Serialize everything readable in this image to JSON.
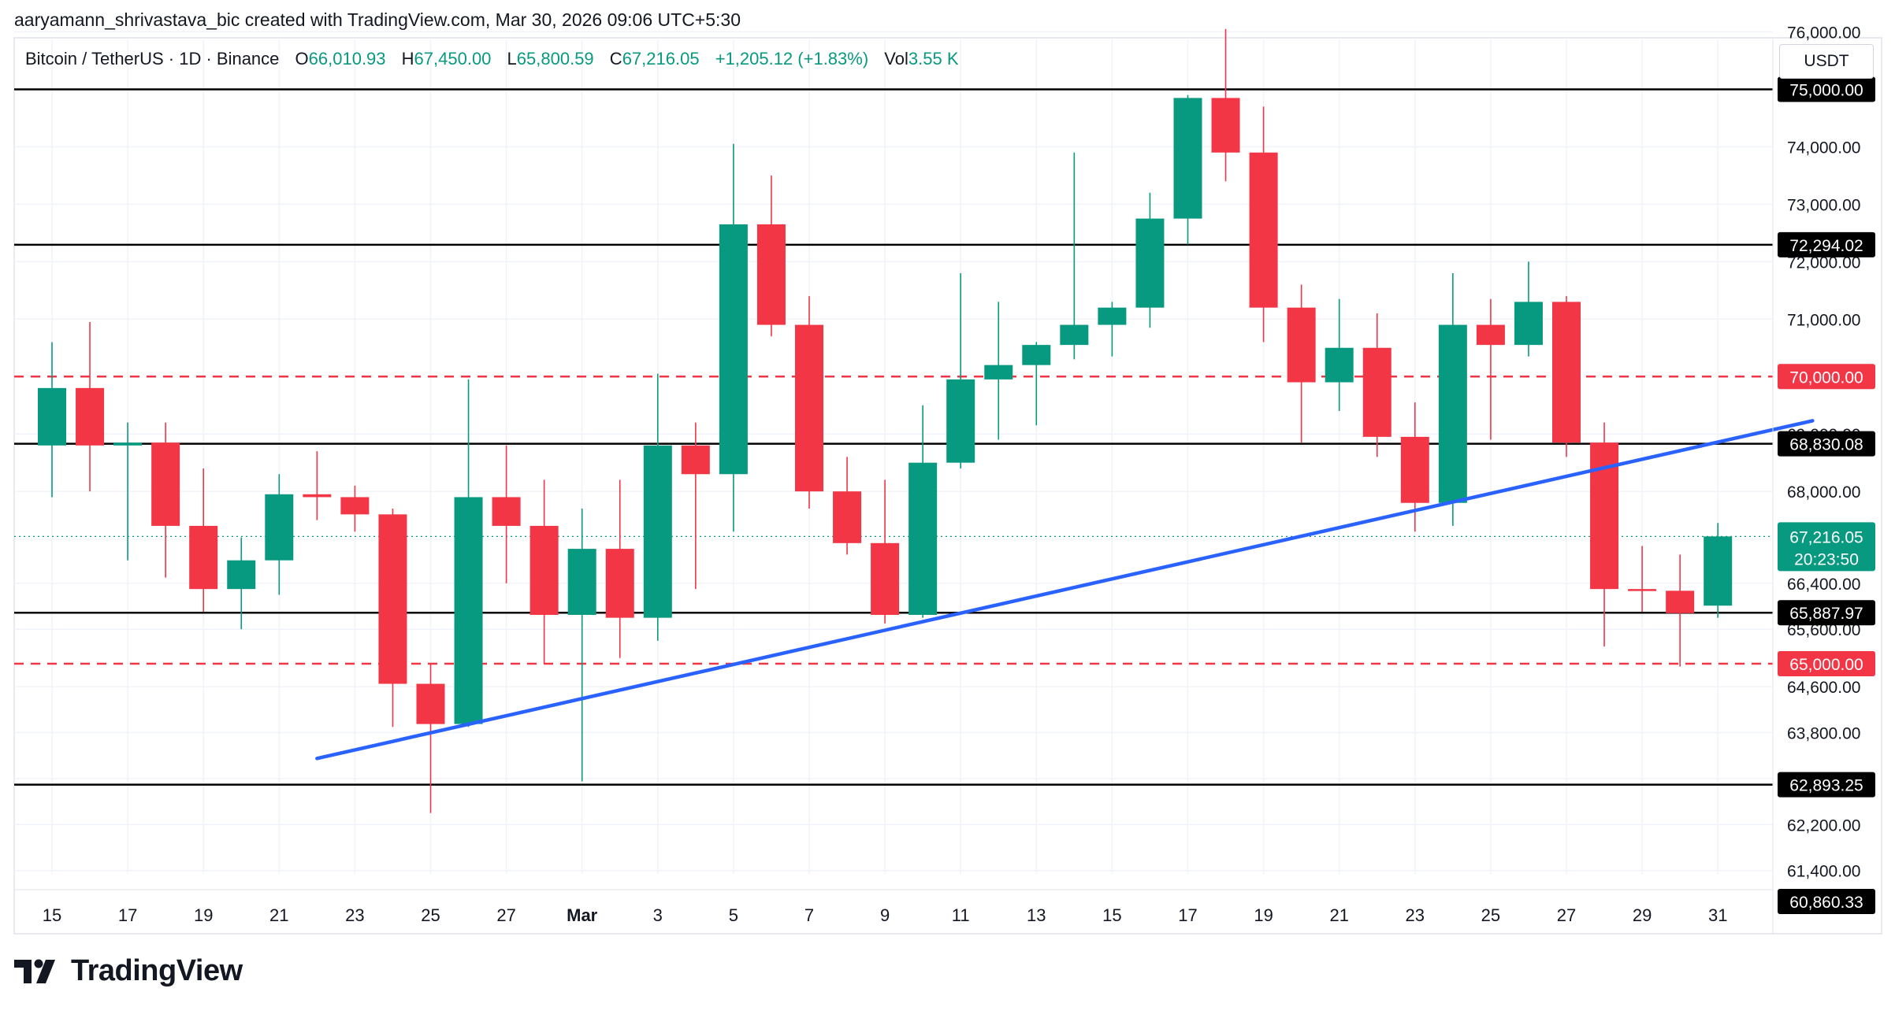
{
  "caption": "aaryamann_shrivastava_bic created with TradingView.com, Mar 30, 2026 09:06 UTC+5:30",
  "legend": {
    "symbol": "Bitcoin / TetherUS · 1D · Binance",
    "o_label": "O",
    "o_value": "66,010.93",
    "h_label": "H",
    "h_value": "67,450.00",
    "l_label": "L",
    "l_value": "65,800.59",
    "c_label": "C",
    "c_value": "67,216.05",
    "change": "+1,205.12 (+1.83%)",
    "vol_label": "Vol",
    "vol_value": "3.55 K"
  },
  "currency": "USDT",
  "logo_text": "TradingView",
  "colors": {
    "up": "#089981",
    "down": "#f23645",
    "trendline": "#2962ff",
    "level": "#000000",
    "dashed": "#f23645"
  },
  "chart_data": {
    "type": "candlestick",
    "x_ticks": [
      {
        "i": 0,
        "label": "15"
      },
      {
        "i": 2,
        "label": "17"
      },
      {
        "i": 4,
        "label": "19"
      },
      {
        "i": 6,
        "label": "21"
      },
      {
        "i": 8,
        "label": "23"
      },
      {
        "i": 10,
        "label": "25"
      },
      {
        "i": 12,
        "label": "27"
      },
      {
        "i": 14,
        "label": "Mar"
      },
      {
        "i": 16,
        "label": "3"
      },
      {
        "i": 18,
        "label": "5"
      },
      {
        "i": 20,
        "label": "7"
      },
      {
        "i": 22,
        "label": "9"
      },
      {
        "i": 24,
        "label": "11"
      },
      {
        "i": 26,
        "label": "13"
      },
      {
        "i": 28,
        "label": "15"
      },
      {
        "i": 30,
        "label": "17"
      },
      {
        "i": 32,
        "label": "19"
      },
      {
        "i": 34,
        "label": "21"
      },
      {
        "i": 36,
        "label": "23"
      },
      {
        "i": 38,
        "label": "25"
      },
      {
        "i": 40,
        "label": "27"
      },
      {
        "i": 42,
        "label": "29"
      },
      {
        "i": 44,
        "label": "31"
      }
    ],
    "y_ticks": [
      {
        "v": 76000,
        "label": "76,000.00"
      },
      {
        "v": 74000,
        "label": "74,000.00"
      },
      {
        "v": 73000,
        "label": "73,000.00"
      },
      {
        "v": 72000,
        "label": "72,000.00"
      },
      {
        "v": 71000,
        "label": "71,000.00"
      },
      {
        "v": 69000,
        "label": "69,000.00"
      },
      {
        "v": 68000,
        "label": "68,000.00"
      },
      {
        "v": 66400,
        "label": "66,400.00"
      },
      {
        "v": 65600,
        "label": "65,600.00"
      },
      {
        "v": 64600,
        "label": "64,600.00"
      },
      {
        "v": 63800,
        "label": "63,800.00"
      },
      {
        "v": 63000,
        "label": "63,000.00"
      },
      {
        "v": 62200,
        "label": "62,200.00"
      },
      {
        "v": 61400,
        "label": "61,400.00"
      }
    ],
    "candles": [
      {
        "o": 68800,
        "h": 70600,
        "l": 67900,
        "c": 69800
      },
      {
        "o": 69800,
        "h": 70950,
        "l": 68000,
        "c": 68800
      },
      {
        "o": 68800,
        "h": 69200,
        "l": 66800,
        "c": 68850
      },
      {
        "o": 68850,
        "h": 69200,
        "l": 66500,
        "c": 67400
      },
      {
        "o": 67400,
        "h": 68400,
        "l": 65900,
        "c": 66300
      },
      {
        "o": 66300,
        "h": 67200,
        "l": 65600,
        "c": 66800
      },
      {
        "o": 66800,
        "h": 68300,
        "l": 66200,
        "c": 67950
      },
      {
        "o": 67950,
        "h": 68700,
        "l": 67500,
        "c": 67900
      },
      {
        "o": 67900,
        "h": 68100,
        "l": 67300,
        "c": 67600
      },
      {
        "o": 67600,
        "h": 67700,
        "l": 63900,
        "c": 64650
      },
      {
        "o": 64650,
        "h": 65000,
        "l": 62400,
        "c": 63950
      },
      {
        "o": 63950,
        "h": 69950,
        "l": 63900,
        "c": 67900
      },
      {
        "o": 67900,
        "h": 68800,
        "l": 66400,
        "c": 67400
      },
      {
        "o": 67400,
        "h": 68200,
        "l": 65000,
        "c": 65850
      },
      {
        "o": 65850,
        "h": 67700,
        "l": 62950,
        "c": 67000
      },
      {
        "o": 67000,
        "h": 68200,
        "l": 65100,
        "c": 65800
      },
      {
        "o": 65800,
        "h": 70050,
        "l": 65400,
        "c": 68800
      },
      {
        "o": 68800,
        "h": 69200,
        "l": 66300,
        "c": 68300
      },
      {
        "o": 68300,
        "h": 74050,
        "l": 67300,
        "c": 72650
      },
      {
        "o": 72650,
        "h": 73500,
        "l": 70700,
        "c": 70900
      },
      {
        "o": 70900,
        "h": 71400,
        "l": 67700,
        "c": 68000
      },
      {
        "o": 68000,
        "h": 68600,
        "l": 66900,
        "c": 67100
      },
      {
        "o": 67100,
        "h": 68200,
        "l": 65700,
        "c": 65850
      },
      {
        "o": 65850,
        "h": 69500,
        "l": 65800,
        "c": 68500
      },
      {
        "o": 68500,
        "h": 71800,
        "l": 68400,
        "c": 69950
      },
      {
        "o": 69950,
        "h": 71300,
        "l": 68900,
        "c": 70200
      },
      {
        "o": 70200,
        "h": 70600,
        "l": 69150,
        "c": 70550
      },
      {
        "o": 70550,
        "h": 73900,
        "l": 70300,
        "c": 70900
      },
      {
        "o": 70900,
        "h": 71300,
        "l": 70350,
        "c": 71200
      },
      {
        "o": 71200,
        "h": 73200,
        "l": 70850,
        "c": 72750
      },
      {
        "o": 72750,
        "h": 74900,
        "l": 72300,
        "c": 74850
      },
      {
        "o": 74850,
        "h": 76050,
        "l": 73400,
        "c": 73900
      },
      {
        "o": 73900,
        "h": 74700,
        "l": 70600,
        "c": 71200
      },
      {
        "o": 71200,
        "h": 71600,
        "l": 68850,
        "c": 69900
      },
      {
        "o": 69900,
        "h": 71350,
        "l": 69400,
        "c": 70500
      },
      {
        "o": 70500,
        "h": 71100,
        "l": 68600,
        "c": 68950
      },
      {
        "o": 68950,
        "h": 69550,
        "l": 67300,
        "c": 67800
      },
      {
        "o": 67800,
        "h": 71800,
        "l": 67400,
        "c": 70900
      },
      {
        "o": 70900,
        "h": 71350,
        "l": 68900,
        "c": 70550
      },
      {
        "o": 70550,
        "h": 72000,
        "l": 70350,
        "c": 71300
      },
      {
        "o": 71300,
        "h": 71400,
        "l": 68600,
        "c": 68850
      },
      {
        "o": 68850,
        "h": 69200,
        "l": 65300,
        "c": 66300
      },
      {
        "o": 66300,
        "h": 67050,
        "l": 65900,
        "c": 66270
      },
      {
        "o": 66270,
        "h": 66900,
        "l": 64950,
        "c": 65880
      },
      {
        "o": 66010.93,
        "h": 67450,
        "l": 65800.59,
        "c": 67216.05
      }
    ],
    "horizontal_levels": [
      {
        "v": 75000,
        "label": "75,000.00",
        "style": "solid",
        "name": "level-75000"
      },
      {
        "v": 72294.02,
        "label": "72,294.02",
        "style": "solid",
        "name": "level-72294"
      },
      {
        "v": 70000,
        "label": "70,000.00",
        "style": "dashed",
        "name": "level-70000"
      },
      {
        "v": 68830.08,
        "label": "68,830.08",
        "style": "solid",
        "name": "level-68830"
      },
      {
        "v": 65887.97,
        "label": "65,887.97",
        "style": "solid",
        "name": "level-65887"
      },
      {
        "v": 65000,
        "label": "65,000.00",
        "style": "dashed",
        "name": "level-65000"
      },
      {
        "v": 62893.25,
        "label": "62,893.25",
        "style": "solid",
        "name": "level-62893"
      }
    ],
    "bottom_label": {
      "v": 60860.33,
      "label": "60,860.33"
    },
    "last_price": {
      "v": 67216.05,
      "label": "67,216.05",
      "countdown": "20:23:50"
    },
    "trendline": {
      "start": {
        "i": 7,
        "v": 63350
      },
      "end": {
        "i": 46.5,
        "v": 69230
      }
    },
    "y_range": [
      60600,
      76500
    ]
  }
}
